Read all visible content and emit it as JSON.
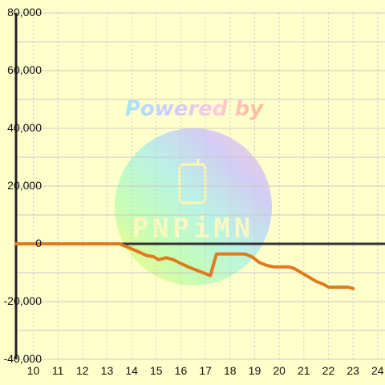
{
  "chart_data": {
    "type": "line",
    "title": "",
    "xlabel": "",
    "ylabel": "",
    "xlim": [
      9.3,
      24.3
    ],
    "ylim": [
      -40000,
      80000
    ],
    "x_ticks": [
      "10",
      "11",
      "12",
      "13",
      "14",
      "15",
      "16",
      "17",
      "18",
      "19",
      "20",
      "21",
      "22",
      "23",
      "24"
    ],
    "y_ticks": [
      "80,000",
      "60,000",
      "40,000",
      "20,000",
      "0",
      "-20,000",
      "-40,000"
    ],
    "y_tick_values": [
      80000,
      60000,
      40000,
      20000,
      0,
      -20000,
      -40000
    ],
    "grid": true,
    "series": [
      {
        "color": "#e07a1f",
        "points": [
          [
            9.3,
            0
          ],
          [
            10,
            0
          ],
          [
            11,
            0
          ],
          [
            12,
            0
          ],
          [
            13,
            0
          ],
          [
            13.5,
            0
          ],
          [
            13.8,
            -1000
          ],
          [
            14.2,
            -2500
          ],
          [
            14.6,
            -4000
          ],
          [
            14.9,
            -4500
          ],
          [
            15.1,
            -5500
          ],
          [
            15.4,
            -4800
          ],
          [
            15.7,
            -5500
          ],
          [
            16.0,
            -6800
          ],
          [
            16.3,
            -8000
          ],
          [
            16.6,
            -9000
          ],
          [
            16.9,
            -10000
          ],
          [
            17.2,
            -11000
          ],
          [
            17.45,
            -3500
          ],
          [
            17.8,
            -3500
          ],
          [
            18.2,
            -3500
          ],
          [
            18.6,
            -3500
          ],
          [
            18.9,
            -4500
          ],
          [
            19.2,
            -6500
          ],
          [
            19.5,
            -7500
          ],
          [
            19.8,
            -8000
          ],
          [
            20.1,
            -8000
          ],
          [
            20.4,
            -8000
          ],
          [
            20.6,
            -8500
          ],
          [
            20.9,
            -10000
          ],
          [
            21.2,
            -11500
          ],
          [
            21.5,
            -13000
          ],
          [
            21.8,
            -14000
          ],
          [
            22.0,
            -15000
          ],
          [
            22.3,
            -15000
          ],
          [
            22.6,
            -15000
          ],
          [
            22.8,
            -15000
          ],
          [
            23.0,
            -15500
          ]
        ]
      }
    ],
    "zero_line_color": "#333333",
    "background_color": "#ffffcc",
    "grid_color": "#c8c8c8"
  },
  "watermark": {
    "text": "Powered by",
    "logo_text": "PNPiMN"
  }
}
